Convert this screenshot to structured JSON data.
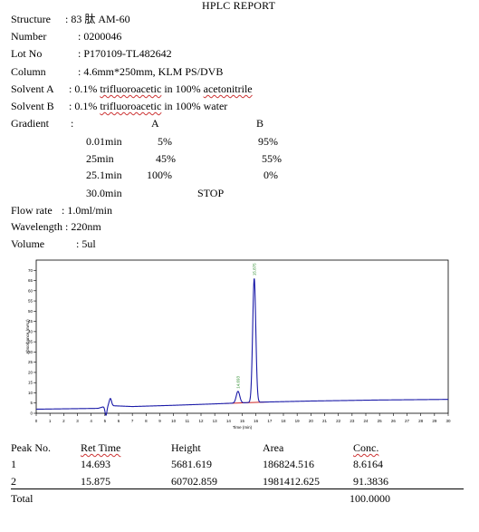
{
  "report": {
    "title": "HPLC REPORT",
    "structure_label": "Structure",
    "structure_value": ": 83 肽  AM-60",
    "number_label": "Number",
    "number_value": ": 0200046",
    "lot_label": "Lot No",
    "lot_value": ": P170109-TL482642",
    "column_label": "Column",
    "column_value": ": 4.6mm*250mm, KLM PS/DVB",
    "solvent_a_label": "Solvent   A",
    "solvent_a_value_pre": ": 0.1% ",
    "solvent_a_value_word": "trifluoroacetic",
    "solvent_a_value_mid": " in 100% ",
    "solvent_a_value_word2": "acetonitrile",
    "solvent_b_label": "Solvent   B",
    "solvent_b_value_pre": ": 0.1% ",
    "solvent_b_value_word": "trifluoroacetic",
    "solvent_b_value_post": " in 100% water",
    "gradient_label": "Gradient",
    "gradient_colon": ":",
    "gradient_head_a": "A",
    "gradient_head_b": "B",
    "gradient_rows": [
      {
        "time": "0.01min",
        "a": "5%",
        "b": "95%"
      },
      {
        "time": "25min",
        "a": "45%",
        "b": "55%"
      },
      {
        "time": "25.1min",
        "a": "100%",
        "b": "0%"
      }
    ],
    "gradient_stop_time": "30.0min",
    "gradient_stop": "STOP",
    "flow_label": "Flow rate",
    "flow_value": ": 1.0ml/min",
    "wavelength_label": "Wavelength",
    "wavelength_value": ": 220nm",
    "volume_label": "Volume",
    "volume_value": ": 5ul"
  },
  "chart_data": {
    "type": "line",
    "xlabel": "Time (min)",
    "ylabel": "Absorbance (mAU)",
    "xlim": [
      0,
      30
    ],
    "ylim": [
      0,
      75
    ],
    "x_ticks": [
      "0",
      "1",
      "2",
      "3",
      "4",
      "5",
      "6",
      "7",
      "8",
      "9",
      "10",
      "11",
      "12",
      "13",
      "14",
      "15",
      "16",
      "17",
      "18",
      "19",
      "20",
      "21",
      "22",
      "23",
      "24",
      "25",
      "26",
      "27",
      "28",
      "29",
      "30"
    ],
    "y_ticks": [
      "0",
      "5",
      "10",
      "15",
      "20",
      "25",
      "30",
      "35",
      "40",
      "45",
      "50",
      "55",
      "60",
      "65",
      "70"
    ],
    "peaks": [
      {
        "label": "14.693",
        "x": 14.693,
        "height": 5.7
      },
      {
        "label": "15.875",
        "x": 15.875,
        "height": 60.7
      }
    ],
    "baseline": [
      [
        0,
        2
      ],
      [
        4.5,
        2.4
      ],
      [
        5.2,
        3.8
      ],
      [
        7,
        3.3
      ],
      [
        10,
        3.9
      ],
      [
        13,
        4.6
      ],
      [
        16,
        5.4
      ],
      [
        20,
        6.0
      ],
      [
        25,
        6.5
      ],
      [
        30,
        6.8
      ]
    ],
    "injection_artifact_x": 5.3,
    "colors": {
      "trace": "#1a1aa8",
      "baseline_fill": "#cc2222",
      "label": "#2a8a2a",
      "axis": "#000000"
    }
  },
  "peak_table": {
    "headers": [
      "Peak No.",
      "Ret Time",
      "Height",
      "Area",
      "Conc."
    ],
    "rows": [
      [
        "1",
        "14.693",
        "5681.619",
        "186824.516",
        "8.6164"
      ],
      [
        "2",
        "15.875",
        "60702.859",
        "1981412.625",
        "91.3836"
      ]
    ],
    "total_label": "Total",
    "total_value": "100.0000"
  }
}
